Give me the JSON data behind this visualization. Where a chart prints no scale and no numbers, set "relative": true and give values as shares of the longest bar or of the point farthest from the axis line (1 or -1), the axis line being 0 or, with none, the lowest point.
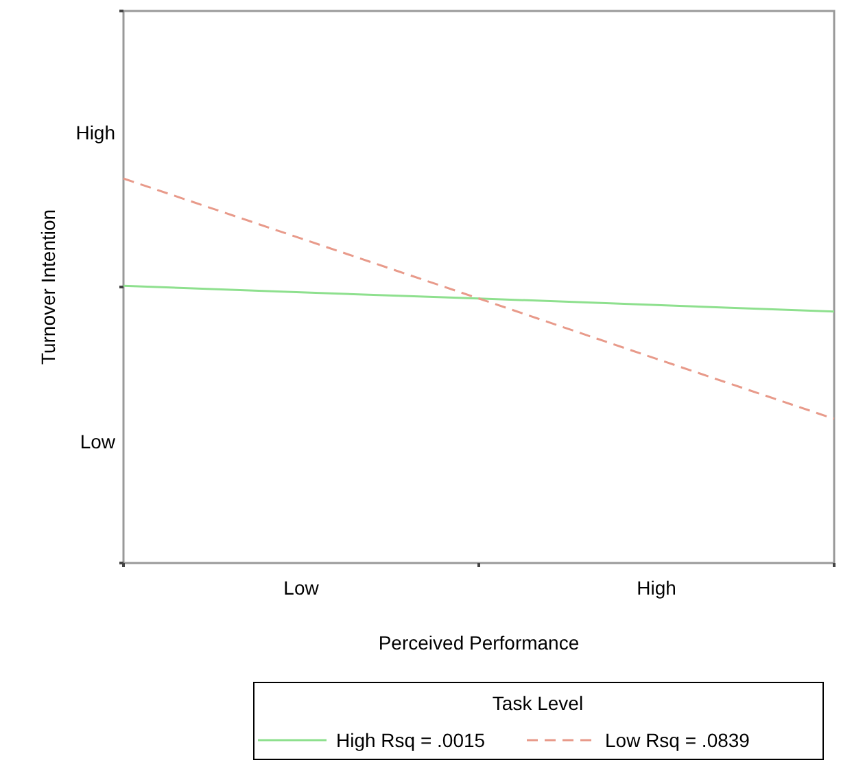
{
  "chart_data": {
    "type": "line",
    "relative": true,
    "xlabel": "Perceived Performance",
    "ylabel": "Turnover Intention",
    "legend_title": "Task Level",
    "legend": "bottom right",
    "grid": false,
    "categories": [
      null,
      "Low",
      null,
      "High",
      null
    ],
    "annotations": [
      "High",
      "Low"
    ],
    "series": [
      {
        "name": "High Rsq = .0015",
        "color": "#8ee08e",
        "values": [
          0.721,
          0.704,
          0.688,
          0.671,
          0.654
        ],
        "line_style": "solid"
      },
      {
        "name": "Low Rsq = .0839",
        "color": "#e89a8a",
        "values": [
          1,
          0.844,
          0.688,
          0.531,
          0.375
        ],
        "line_style": "dashed"
      }
    ]
  }
}
